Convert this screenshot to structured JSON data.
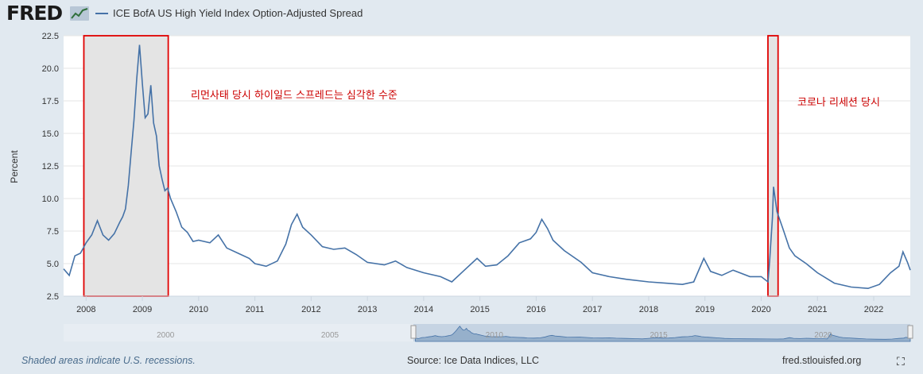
{
  "header": {
    "logo": "FRED",
    "legend_label": "ICE BofA US High Yield Index Option-Adjusted Spread",
    "legend_color": "#4572a7"
  },
  "chart_data": {
    "type": "line",
    "title": "",
    "xlabel": "",
    "ylabel": "Percent",
    "ylim": [
      2.5,
      22.5
    ],
    "xlim": [
      2007.6,
      2022.65
    ],
    "yticks": [
      "2.5",
      "5.0",
      "7.5",
      "10.0",
      "12.5",
      "15.0",
      "17.5",
      "20.0",
      "22.5"
    ],
    "xticks": [
      "2008",
      "2009",
      "2010",
      "2011",
      "2012",
      "2013",
      "2014",
      "2015",
      "2016",
      "2017",
      "2018",
      "2019",
      "2020",
      "2021",
      "2022"
    ],
    "grid": true,
    "legend_position": "top-left",
    "recessions": [
      [
        2007.96,
        2009.46
      ],
      [
        2020.12,
        2020.3
      ]
    ],
    "series": [
      {
        "name": "ICE BofA US High Yield Index Option-Adjusted Spread",
        "color": "#4572a7",
        "x": [
          2007.6,
          2007.7,
          2007.8,
          2007.9,
          2008.0,
          2008.1,
          2008.2,
          2008.3,
          2008.4,
          2008.5,
          2008.6,
          2008.65,
          2008.7,
          2008.75,
          2008.8,
          2008.85,
          2008.9,
          2008.95,
          2009.0,
          2009.05,
          2009.1,
          2009.15,
          2009.2,
          2009.25,
          2009.3,
          2009.35,
          2009.4,
          2009.45,
          2009.5,
          2009.6,
          2009.7,
          2009.8,
          2009.9,
          2010.0,
          2010.2,
          2010.35,
          2010.5,
          2010.7,
          2010.9,
          2011.0,
          2011.2,
          2011.4,
          2011.55,
          2011.65,
          2011.75,
          2011.85,
          2012.0,
          2012.2,
          2012.4,
          2012.6,
          2012.8,
          2013.0,
          2013.3,
          2013.5,
          2013.7,
          2014.0,
          2014.3,
          2014.5,
          2014.7,
          2014.95,
          2015.1,
          2015.3,
          2015.5,
          2015.7,
          2015.9,
          2016.0,
          2016.1,
          2016.2,
          2016.3,
          2016.5,
          2016.8,
          2017.0,
          2017.3,
          2017.6,
          2018.0,
          2018.3,
          2018.6,
          2018.8,
          2018.98,
          2019.1,
          2019.3,
          2019.5,
          2019.8,
          2020.0,
          2020.12,
          2020.15,
          2020.2,
          2020.22,
          2020.28,
          2020.4,
          2020.5,
          2020.6,
          2020.8,
          2021.0,
          2021.3,
          2021.6,
          2021.9,
          2022.1,
          2022.3,
          2022.45,
          2022.52,
          2022.6,
          2022.65
        ],
        "values": [
          4.6,
          4.1,
          5.6,
          5.8,
          6.6,
          7.2,
          8.3,
          7.2,
          6.8,
          7.3,
          8.2,
          8.6,
          9.2,
          11.0,
          13.5,
          16.0,
          19.2,
          21.8,
          18.8,
          16.2,
          16.5,
          18.7,
          15.8,
          14.8,
          12.5,
          11.5,
          10.6,
          10.8,
          10.0,
          9.0,
          7.8,
          7.4,
          6.7,
          6.8,
          6.6,
          7.2,
          6.2,
          5.8,
          5.4,
          5.0,
          4.8,
          5.2,
          6.5,
          8.0,
          8.8,
          7.8,
          7.2,
          6.3,
          6.1,
          6.2,
          5.7,
          5.1,
          4.9,
          5.2,
          4.7,
          4.3,
          4.0,
          3.6,
          4.4,
          5.4,
          4.8,
          4.9,
          5.6,
          6.6,
          6.9,
          7.4,
          8.4,
          7.7,
          6.8,
          6.0,
          5.1,
          4.3,
          4.0,
          3.8,
          3.6,
          3.5,
          3.4,
          3.6,
          5.4,
          4.4,
          4.1,
          4.5,
          4.0,
          4.0,
          3.6,
          5.2,
          8.5,
          10.9,
          9.0,
          7.5,
          6.2,
          5.6,
          5.0,
          4.3,
          3.5,
          3.2,
          3.1,
          3.4,
          4.3,
          4.8,
          5.9,
          5.1,
          4.5
        ]
      }
    ],
    "annotations": [
      {
        "text": "리먼사태 당시 하이일드 스프레드는 심각한 수준",
        "color": "#cc0000"
      },
      {
        "text": "코로나 리세션 당시",
        "color": "#cc0000"
      }
    ],
    "navigator": {
      "ticks": [
        "2000",
        "2005",
        "2010",
        "2015",
        "2020"
      ]
    }
  },
  "footer": {
    "note": "Shaded areas indicate U.S. recessions.",
    "source": "Source: Ice Data Indices, LLC",
    "site": "fred.stlouisfed.org",
    "fullscreen_icon": "fullscreen-icon"
  }
}
